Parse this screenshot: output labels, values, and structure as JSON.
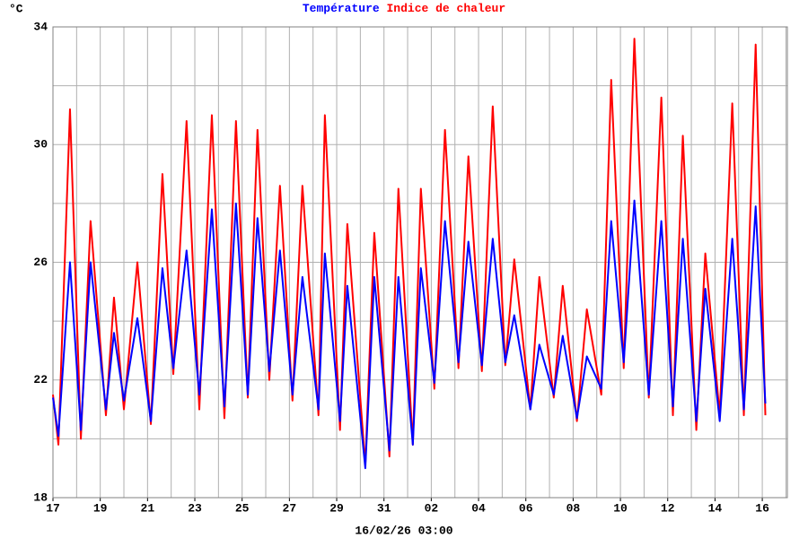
{
  "chart_data": {
    "type": "line",
    "y_unit": "°C",
    "x_label": "16/02/26 03:00",
    "x": [
      0,
      0.23,
      0.72,
      1.18,
      1.59,
      2.24,
      2.58,
      3.0,
      3.57,
      4.14,
      4.63,
      5.09,
      5.65,
      6.19,
      6.72,
      7.25,
      7.74,
      8.24,
      8.65,
      9.15,
      9.6,
      10.13,
      10.55,
      11.23,
      11.5,
      12.14,
      12.45,
      13.21,
      13.59,
      14.23,
      14.61,
      15.22,
      15.56,
      16.13,
      16.58,
      17.15,
      17.57,
      18.14,
      18.6,
      19.13,
      19.51,
      20.19,
      20.57,
      21.18,
      21.56,
      22.16,
      22.58,
      23.19,
      23.61,
      24.14,
      24.59,
      25.2,
      25.73,
      26.22,
      26.64,
      27.21,
      27.59,
      28.2,
      28.73,
      29.22,
      29.72,
      30.13
    ],
    "series": [
      {
        "name": "Indice de chaleur",
        "color": "#ff0000",
        "values": [
          21.5,
          19.8,
          31.2,
          20.0,
          27.4,
          20.8,
          24.8,
          21.0,
          26.0,
          20.5,
          29.0,
          22.2,
          30.8,
          21.0,
          31.0,
          20.7,
          30.8,
          21.4,
          30.5,
          22.0,
          28.6,
          21.3,
          28.6,
          20.8,
          31.0,
          20.3,
          27.3,
          19.1,
          27.0,
          19.4,
          28.5,
          19.8,
          28.5,
          21.7,
          30.5,
          22.4,
          29.6,
          22.3,
          31.3,
          22.5,
          26.1,
          21.0,
          25.5,
          21.4,
          25.2,
          20.6,
          24.4,
          21.5,
          32.2,
          22.4,
          33.6,
          21.4,
          31.6,
          20.8,
          30.3,
          20.3,
          26.3,
          20.8,
          31.4,
          20.8,
          33.4,
          20.8
        ]
      },
      {
        "name": "Température",
        "color": "#0000ff",
        "values": [
          21.4,
          20.1,
          26.0,
          20.3,
          26.0,
          21.0,
          23.6,
          21.3,
          24.1,
          20.6,
          25.8,
          22.4,
          26.4,
          21.5,
          27.8,
          21.1,
          28.0,
          21.5,
          27.5,
          22.3,
          26.4,
          21.5,
          25.5,
          21.0,
          26.3,
          20.6,
          25.2,
          19.0,
          25.5,
          19.6,
          25.5,
          19.8,
          25.8,
          21.9,
          27.4,
          22.6,
          26.7,
          22.5,
          26.8,
          22.6,
          24.2,
          21.0,
          23.2,
          21.5,
          23.5,
          20.7,
          22.8,
          21.7,
          27.4,
          22.6,
          28.1,
          21.5,
          27.4,
          21.1,
          26.8,
          20.6,
          25.1,
          20.6,
          26.8,
          21.0,
          27.9,
          21.2
        ]
      }
    ],
    "xlim": [
      0,
      31.06
    ],
    "ylim": [
      18,
      34
    ],
    "yticks": [
      18,
      22,
      26,
      30,
      34
    ],
    "ygrid": [
      20,
      24,
      28,
      32
    ],
    "xticks": [
      {
        "value": 0,
        "label": "17"
      },
      {
        "value": 2,
        "label": "19"
      },
      {
        "value": 4,
        "label": "21"
      },
      {
        "value": 6,
        "label": "23"
      },
      {
        "value": 8,
        "label": "25"
      },
      {
        "value": 10,
        "label": "27"
      },
      {
        "value": 12,
        "label": "29"
      },
      {
        "value": 14,
        "label": "31"
      },
      {
        "value": 16,
        "label": "02"
      },
      {
        "value": 18,
        "label": "04"
      },
      {
        "value": 20,
        "label": "06"
      },
      {
        "value": 22,
        "label": "08"
      },
      {
        "value": 24,
        "label": "10"
      },
      {
        "value": 26,
        "label": "12"
      },
      {
        "value": 28,
        "label": "14"
      },
      {
        "value": 30,
        "label": "16"
      }
    ],
    "xgrid": [
      1,
      3,
      5,
      7,
      9,
      11,
      13,
      15,
      17,
      19,
      21,
      23,
      25,
      27,
      29,
      31
    ],
    "grid": true
  }
}
